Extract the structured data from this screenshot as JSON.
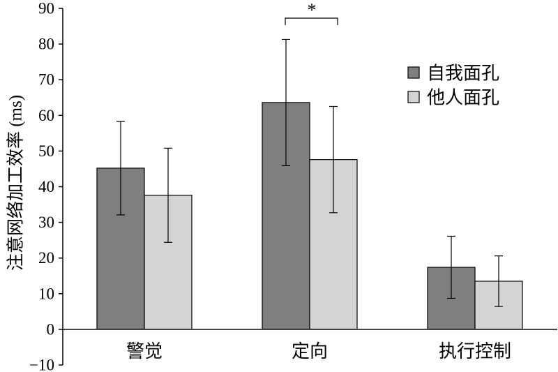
{
  "chart_data": {
    "type": "bar",
    "ylabel": "注意网络加工效率 (ms)",
    "categories": [
      "警觉",
      "定向",
      "执行控制"
    ],
    "series": [
      {
        "name": "自我面孔",
        "color": "#7f7f80",
        "values": [
          45.2,
          63.6,
          17.4
        ],
        "error": [
          13.1,
          17.7,
          8.7
        ]
      },
      {
        "name": "他人面孔",
        "color": "#d4d4d4",
        "values": [
          37.6,
          47.6,
          13.5
        ],
        "error": [
          13.2,
          14.9,
          7.1
        ]
      }
    ],
    "ylim": [
      -10,
      90
    ],
    "yticks": [
      -10,
      0,
      10,
      20,
      30,
      40,
      50,
      60,
      70,
      80,
      90
    ],
    "ytick_labels": [
      "−10",
      "0",
      "10",
      "20",
      "30",
      "40",
      "50",
      "60",
      "70",
      "80",
      "90"
    ],
    "grid": false,
    "legend": "top-right",
    "significance": [
      {
        "category": "定向",
        "label": "*"
      }
    ],
    "axis_color": "#000000",
    "bar_edge_color": "#000000"
  }
}
